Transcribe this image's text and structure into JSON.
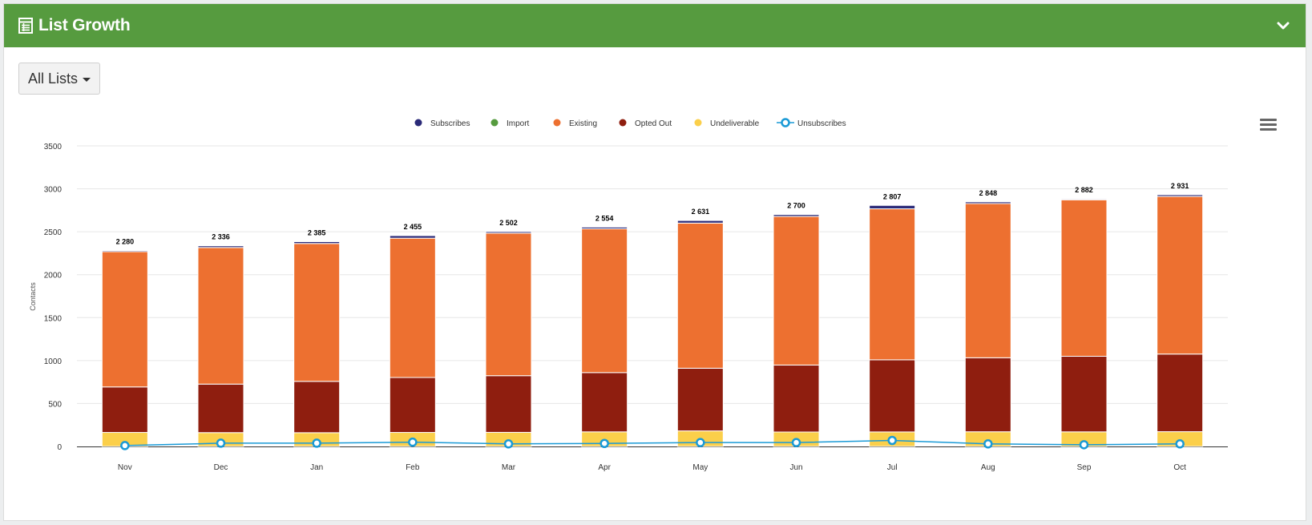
{
  "panel": {
    "title": "List Growth",
    "title_icon": "table-icon",
    "collapse_icon": "chevron-down-icon",
    "header_color": "#569b3f"
  },
  "filter": {
    "label": "All Lists",
    "icon": "caret-down-icon"
  },
  "chart_menu_icon": "hamburger-menu-icon",
  "chart_data": {
    "type": "bar",
    "stacked": true,
    "title": "",
    "xlabel": "",
    "ylabel": "Contacts",
    "ylim": [
      0,
      3500
    ],
    "yticks": [
      0,
      500,
      1000,
      1500,
      2000,
      2500,
      3000,
      3500
    ],
    "grid": true,
    "legend_position": "top-center",
    "categories": [
      "Nov",
      "Dec",
      "Jan",
      "Feb",
      "Mar",
      "Apr",
      "May",
      "Jun",
      "Jul",
      "Aug",
      "Sep",
      "Oct"
    ],
    "totals": [
      "2 280",
      "2 336",
      "2 385",
      "2 455",
      "2 502",
      "2 554",
      "2 631",
      "2 700",
      "2 807",
      "2 848",
      "2 882",
      "2 931"
    ],
    "series": [
      {
        "name": "Subscribes",
        "kind": "bar",
        "color": "#2b2a78",
        "values": [
          12,
          20,
          22,
          30,
          18,
          20,
          30,
          22,
          40,
          20,
          10,
          20
        ]
      },
      {
        "name": "Import",
        "kind": "bar",
        "color": "#569b3f",
        "values": [
          0,
          0,
          0,
          0,
          0,
          0,
          0,
          0,
          0,
          0,
          0,
          0
        ]
      },
      {
        "name": "Existing",
        "kind": "bar",
        "color": "#ed7030",
        "values": [
          1575,
          1590,
          1605,
          1622,
          1660,
          1674,
          1690,
          1730,
          1758,
          1795,
          1822,
          1835
        ]
      },
      {
        "name": "Opted Out",
        "kind": "bar",
        "color": "#8f1e0f",
        "values": [
          530,
          565,
          598,
          640,
          660,
          690,
          730,
          780,
          840,
          862,
          880,
          904
        ]
      },
      {
        "name": "Undeliverable",
        "kind": "bar",
        "color": "#fbcf4a",
        "values": [
          163,
          161,
          160,
          163,
          164,
          170,
          181,
          168,
          169,
          171,
          170,
          172
        ]
      },
      {
        "name": "Unsubscribes",
        "kind": "line",
        "color": "#1a9ad6",
        "values": [
          10,
          38,
          38,
          50,
          30,
          35,
          45,
          45,
          70,
          30,
          20,
          30
        ]
      }
    ]
  }
}
